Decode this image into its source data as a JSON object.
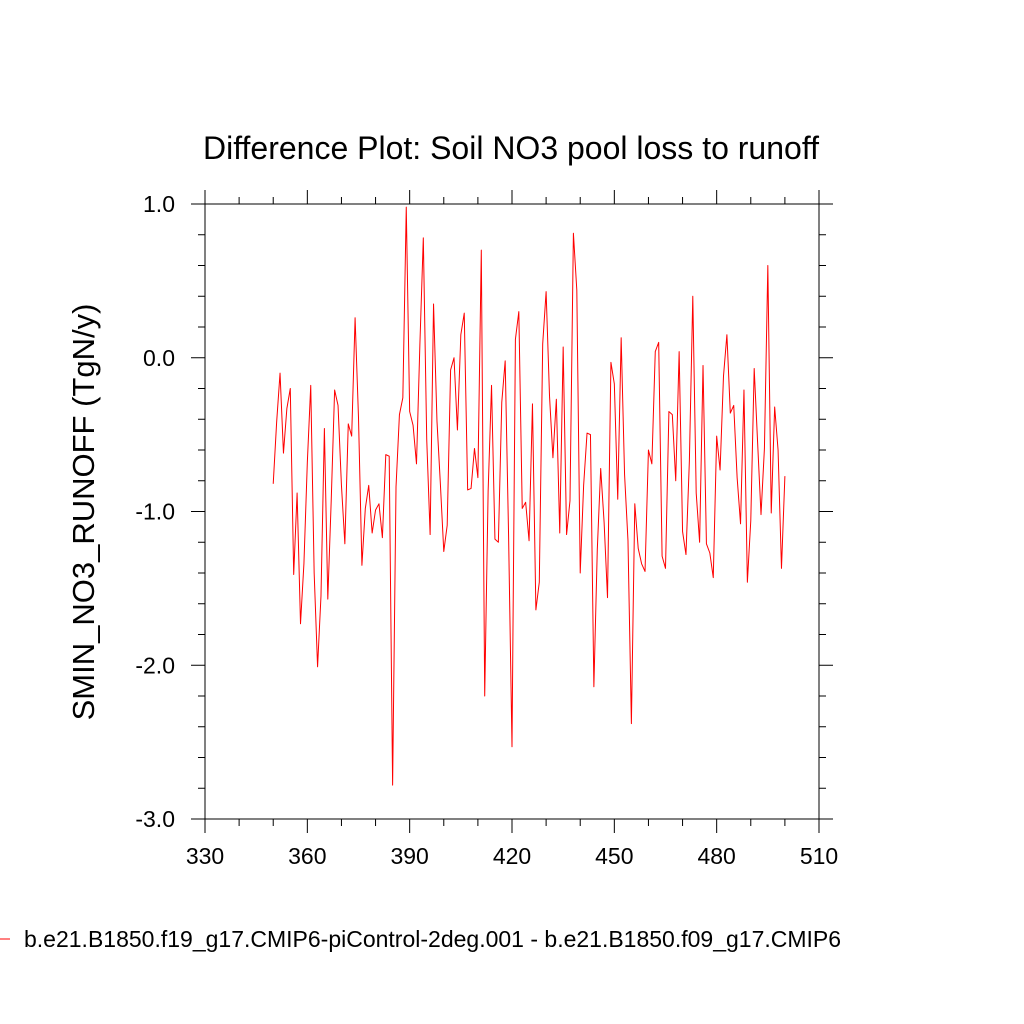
{
  "chart_data": {
    "type": "line",
    "title": "Difference Plot: Soil NO3 pool loss to runoff",
    "xlabel": "",
    "ylabel": "SMIN_NO3_RUNOFF  (TgN/y)",
    "xlim": [
      330,
      510
    ],
    "ylim": [
      -3.0,
      1.0
    ],
    "xticks": [
      330,
      360,
      390,
      420,
      450,
      480,
      510
    ],
    "xtick_labels": [
      "330",
      "360",
      "390",
      "420",
      "450",
      "480",
      "510"
    ],
    "yticks": [
      1.0,
      0.0,
      -1.0,
      -2.0,
      -3.0
    ],
    "ytick_labels": [
      "1.0",
      "0.0",
      "-1.0",
      "-2.0",
      "-3.0"
    ],
    "grid": false,
    "series": [
      {
        "name": "b.e21.B1850.f19_g17.CMIP6-piControl-2deg.001 - b.e21.B1850.f09_g17.CMIP6",
        "color": "#ff0000",
        "x_start": 350,
        "x_step": 1,
        "values": [
          -0.82,
          -0.42,
          -0.1,
          -0.62,
          -0.33,
          -0.2,
          -1.41,
          -0.88,
          -1.73,
          -1.34,
          -0.68,
          -0.18,
          -1.4,
          -2.01,
          -1.55,
          -0.46,
          -1.57,
          -0.93,
          -0.21,
          -0.31,
          -0.83,
          -1.21,
          -0.43,
          -0.51,
          0.26,
          -0.39,
          -1.35,
          -0.98,
          -0.83,
          -1.14,
          -0.99,
          -0.95,
          -1.17,
          -0.63,
          -0.64,
          -2.78,
          -0.84,
          -0.37,
          -0.26,
          0.98,
          -0.35,
          -0.44,
          -0.69,
          0.09,
          0.78,
          -0.53,
          -1.15,
          0.35,
          -0.41,
          -0.82,
          -1.26,
          -1.09,
          -0.08,
          0.0,
          -0.47,
          0.15,
          0.29,
          -0.86,
          -0.85,
          -0.59,
          -0.78,
          0.7,
          -2.2,
          -0.87,
          -0.18,
          -1.18,
          -1.2,
          -0.29,
          -0.02,
          -1.16,
          -2.53,
          0.12,
          0.3,
          -0.98,
          -0.94,
          -1.19,
          -0.3,
          -1.64,
          -1.46,
          0.09,
          0.43,
          -0.25,
          -0.65,
          -0.27,
          -1.14,
          0.07,
          -1.15,
          -0.93,
          0.81,
          0.44,
          -1.4,
          -0.83,
          -0.49,
          -0.5,
          -2.14,
          -1.25,
          -0.72,
          -1.07,
          -1.56,
          -0.03,
          -0.17,
          -0.92,
          0.13,
          -0.76,
          -1.19,
          -2.38,
          -0.95,
          -1.24,
          -1.34,
          -1.39,
          -0.6,
          -0.69,
          0.04,
          0.1,
          -1.29,
          -1.37,
          -0.35,
          -0.37,
          -0.8,
          0.04,
          -1.13,
          -1.28,
          -0.67,
          0.4,
          -0.88,
          -1.2,
          -0.05,
          -1.21,
          -1.27,
          -1.43,
          -0.51,
          -0.73,
          -0.12,
          0.15,
          -0.36,
          -0.31,
          -0.78,
          -1.08,
          -0.21,
          -1.46,
          -1.06,
          -0.07,
          -0.55,
          -1.02,
          -0.59,
          0.6,
          -1.01,
          -0.32,
          -0.6,
          -1.37,
          -0.77
        ]
      }
    ]
  }
}
